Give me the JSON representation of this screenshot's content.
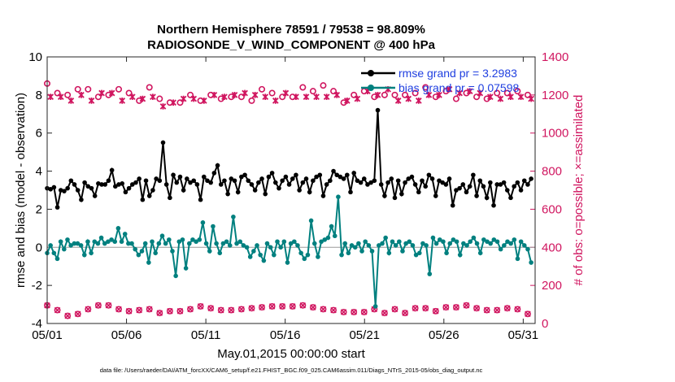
{
  "chart_data": {
    "type": "line",
    "title_line1": "Northern Hemisphere 78591 / 79538 = 98.809%",
    "title_line2": "RADIOSONDE_V_WIND_COMPONENT @ 400 hPa",
    "xlabel": "May.01,2015 00:00:00 start",
    "ylabel_left": "rmse and bias (model - observation)",
    "ylabel_right": "# of obs: o=possible; ×=assimilated",
    "x_tick_labels": [
      "05/01",
      "05/06",
      "05/11",
      "05/16",
      "05/21",
      "05/26",
      "05/31"
    ],
    "x_tick_days": [
      0,
      5,
      10,
      15,
      20,
      25,
      30
    ],
    "xlim": [
      0,
      30.75
    ],
    "ylim_left": [
      -4,
      10
    ],
    "y_ticks_left": [
      "-4",
      "-2",
      "0",
      "2",
      "4",
      "6",
      "8",
      "10"
    ],
    "ylim_right": [
      0,
      1400
    ],
    "y_ticks_right": [
      "0",
      "200",
      "400",
      "600",
      "800",
      "1000",
      "1200",
      "1400"
    ],
    "legend": {
      "rmse_label": "rmse grand pr = 3.2983",
      "bias_label": "bias grand pr = 0.07598"
    },
    "colors": {
      "rmse": "#000000",
      "bias": "#00807f",
      "obs": "#d0155f",
      "legend_text": "#1f3fe0"
    },
    "series": [
      {
        "name": "rmse",
        "values": [
          3.1,
          3.05,
          3.15,
          2.1,
          3.0,
          2.95,
          3.1,
          3.5,
          3.3,
          3.0,
          2.5,
          3.4,
          3.2,
          3.1,
          2.7,
          3.35,
          3.3,
          3.3,
          3.5,
          4.05,
          3.2,
          3.3,
          3.35,
          2.9,
          3.1,
          3.3,
          3.4,
          3.6,
          2.5,
          3.5,
          2.7,
          3.0,
          3.6,
          3.5,
          5.5,
          3.3,
          2.6,
          3.8,
          3.4,
          3.7,
          3.0,
          3.6,
          3.4,
          3.5,
          3.3,
          2.5,
          3.7,
          3.5,
          3.4,
          3.9,
          4.3,
          3.3,
          3.5,
          2.8,
          3.6,
          3.5,
          2.9,
          3.7,
          3.8,
          3.5,
          3.3,
          3.0,
          3.4,
          3.6,
          2.8,
          3.7,
          3.9,
          3.4,
          3.1,
          3.5,
          3.7,
          3.3,
          3.6,
          3.8,
          3.0,
          3.4,
          3.6,
          2.9,
          3.5,
          3.7,
          3.8,
          2.7,
          3.3,
          3.5,
          4.0,
          3.8,
          3.7,
          3.6,
          3.8,
          2.9,
          3.9,
          3.5,
          3.4,
          3.6,
          3.3,
          3.4,
          3.5,
          7.2,
          3.3,
          2.7,
          3.4,
          3.6,
          2.6,
          3.5,
          2.8,
          3.4,
          3.6,
          3.7,
          3.3,
          2.9,
          3.5,
          3.2,
          3.8,
          3.6,
          2.7,
          3.5,
          3.4,
          3.3,
          3.6,
          2.2,
          3.0,
          3.1,
          3.3,
          2.9,
          3.2,
          3.8,
          2.7,
          3.5,
          3.2,
          2.6,
          3.4,
          2.2,
          3.3,
          3.3,
          3.4,
          3.0,
          2.6,
          3.2,
          3.4,
          3.0,
          3.5,
          3.3,
          3.6
        ]
      },
      {
        "name": "bias",
        "values": [
          -0.3,
          0.1,
          -0.3,
          -0.6,
          0.3,
          -0.1,
          0.4,
          0.1,
          0.2,
          0.2,
          0.1,
          -0.4,
          0.3,
          -0.3,
          0.3,
          0.2,
          0.5,
          0.2,
          0.3,
          0.4,
          0.3,
          1.0,
          0.3,
          0.7,
          0.2,
          0.2,
          -0.1,
          -0.4,
          -0.2,
          0.2,
          -0.8,
          0.3,
          -0.3,
          0.2,
          0.6,
          0.2,
          0.4,
          -0.2,
          -1.5,
          0.3,
          0.4,
          -1.1,
          0.2,
          0.4,
          0.3,
          0.4,
          1.3,
          0.2,
          -0.2,
          1.1,
          0.2,
          -0.3,
          0.2,
          0.3,
          0.1,
          1.6,
          0.2,
          0.3,
          0.1,
          0.0,
          -0.5,
          -0.2,
          0.1,
          -0.4,
          -0.7,
          0.2,
          0.0,
          -0.4,
          0.3,
          0.0,
          0.3,
          -0.8,
          0.2,
          0.3,
          0.1,
          -0.3,
          -0.6,
          -0.4,
          1.4,
          0.2,
          -0.5,
          0.3,
          0.4,
          0.5,
          1.1,
          0.6,
          2.65,
          -0.4,
          0.2,
          -0.3,
          0.1,
          0.0,
          0.2,
          -0.2,
          0.3,
          0.1,
          -0.2,
          -3.1,
          0.1,
          0.2,
          0.5,
          -0.3,
          0.3,
          0.1,
          0.3,
          -0.2,
          0.2,
          0.3,
          0.1,
          -0.4,
          -0.3,
          0.2,
          0.1,
          -1.4,
          0.5,
          0.2,
          0.4,
          0.3,
          -0.3,
          0.2,
          0.4,
          0.3,
          -0.4,
          0.2,
          0.1,
          0.3,
          0.5,
          0.2,
          -0.3,
          0.4,
          0.3,
          0.2,
          0.4,
          0.3,
          -0.1,
          0.1,
          0.3,
          0.2,
          0.4,
          -0.6,
          0.3,
          0.1,
          -0.1,
          -0.8
        ]
      },
      {
        "name": "obs_possible",
        "values": [
          1260,
          1200,
          1250,
          1210,
          1200,
          1190,
          1200,
          1180,
          1200,
          1230,
          1210,
          1200,
          1230,
          1180,
          1210,
          1190,
          1220,
          1210,
          1200,
          1220,
          1200,
          1230,
          1180,
          1160,
          1210,
          1200,
          1220,
          1170,
          1190,
          1210,
          1240,
          1200,
          1160,
          1180,
          1150,
          1150,
          1160,
          1170,
          1180,
          1160,
          1190,
          1170,
          1200,
          1190,
          1210,
          1170,
          1180,
          1190,
          1200,
          1210,
          1180,
          1180,
          1200,
          1220,
          1190,
          1210,
          1200,
          1190,
          1220,
          1180,
          1170,
          1210,
          1200,
          1230,
          1200,
          1190,
          1210,
          1180,
          1200,
          1190,
          1220,
          1210,
          1190,
          1200,
          1260,
          1240,
          1200,
          1210,
          1220,
          1200,
          1190,
          1250,
          1200,
          1240,
          1220,
          1210,
          1200,
          1160,
          1180,
          1210,
          1200,
          1190,
          1200,
          1220,
          1230,
          1200,
          1190,
          1210,
          1180,
          1200,
          1240,
          1210,
          1200,
          1180,
          1230,
          1200,
          1190,
          1220,
          1210,
          1180,
          1200,
          1240,
          1210,
          1230,
          1190,
          1210,
          1200,
          1220,
          1240,
          1200,
          1180,
          1220,
          1200,
          1210,
          1230,
          1200,
          1190,
          1220,
          1210,
          1180,
          1200,
          1230,
          1210,
          1190,
          1220,
          1210,
          1200,
          1230,
          1220,
          1200,
          1210,
          1200,
          1190
        ]
      },
      {
        "name": "obs_assimilated",
        "values": [
          1250,
          1190,
          1240,
          1200,
          1190,
          1180,
          1190,
          1170,
          1190,
          1220,
          1200,
          1190,
          1220,
          1170,
          1200,
          1180,
          1210,
          1200,
          1190,
          1210,
          1190,
          1220,
          1170,
          1150,
          1200,
          1190,
          1210,
          1160,
          1180,
          1200,
          1230,
          1190,
          1150,
          1170,
          1140,
          1140,
          1150,
          1160,
          1170,
          1150,
          1180,
          1160,
          1190,
          1180,
          1200,
          1160,
          1170,
          1180,
          1190,
          1200,
          1170,
          1170,
          1190,
          1210,
          1180,
          1200,
          1190,
          1180,
          1210,
          1170,
          1160,
          1200,
          1190,
          1220,
          1190,
          1180,
          1200,
          1170,
          1190,
          1180,
          1210,
          1200,
          1180,
          1190,
          1250,
          1230,
          1190,
          1200,
          1210,
          1190,
          1180,
          1240,
          1190,
          1230,
          1210,
          1200,
          1190,
          1150,
          1170,
          1200,
          1190,
          1180,
          1190,
          1210,
          1220,
          1190,
          1180,
          1200,
          1170,
          1190,
          1230,
          1200,
          1190,
          1170,
          1220,
          1190,
          1180,
          1210,
          1200,
          1170,
          1190,
          1230,
          1200,
          1220,
          1180,
          1200,
          1190,
          1210,
          1230,
          1190,
          1170,
          1210,
          1190,
          1200,
          1220,
          1190,
          1180,
          1210,
          1200,
          1170,
          1190,
          1220,
          1200,
          1180,
          1210,
          1200,
          1190,
          1220,
          1210,
          1190,
          1200,
          1190,
          1180
        ]
      },
      {
        "name": "obs_low",
        "values": [
          95,
          90,
          95,
          70,
          40,
          50,
          40,
          60,
          55,
          50,
          70,
          60,
          75,
          65,
          80,
          95,
          90,
          85,
          95,
          80,
          70,
          75,
          80,
          55,
          65,
          50,
          60,
          70,
          60,
          45,
          75,
          60,
          60,
          55,
          75,
          70,
          65,
          55,
          70,
          65,
          60,
          70,
          75,
          65,
          60,
          90,
          85,
          75,
          80,
          85,
          80,
          70,
          75,
          85,
          70,
          65,
          70,
          75,
          70,
          60,
          80,
          70,
          75,
          85,
          80,
          70,
          90,
          95,
          85,
          90,
          80,
          75,
          90,
          85,
          80,
          95,
          90,
          80,
          85,
          90,
          85,
          75,
          80,
          90,
          70,
          80,
          70,
          60,
          75,
          55,
          60,
          55,
          50,
          60,
          65,
          70,
          75,
          80,
          60,
          55,
          70,
          80,
          75,
          65,
          60,
          55,
          60,
          70,
          80,
          75,
          90,
          80,
          70,
          75,
          65,
          75,
          80,
          85,
          95,
          90,
          85,
          105,
          100,
          95,
          90,
          85,
          80,
          90,
          75,
          70,
          85,
          80,
          70,
          90,
          75,
          80,
          85,
          90,
          75,
          65,
          55,
          50,
          0
        ]
      }
    ]
  },
  "footer_text": "data file: /Users/raeder/DAI/ATM_forcXX/CAM6_setup/f.e21.FHIST_BGC.f09_025.CAM6assim.011/Diags_NTrS_2015-05/obs_diag_output.nc"
}
